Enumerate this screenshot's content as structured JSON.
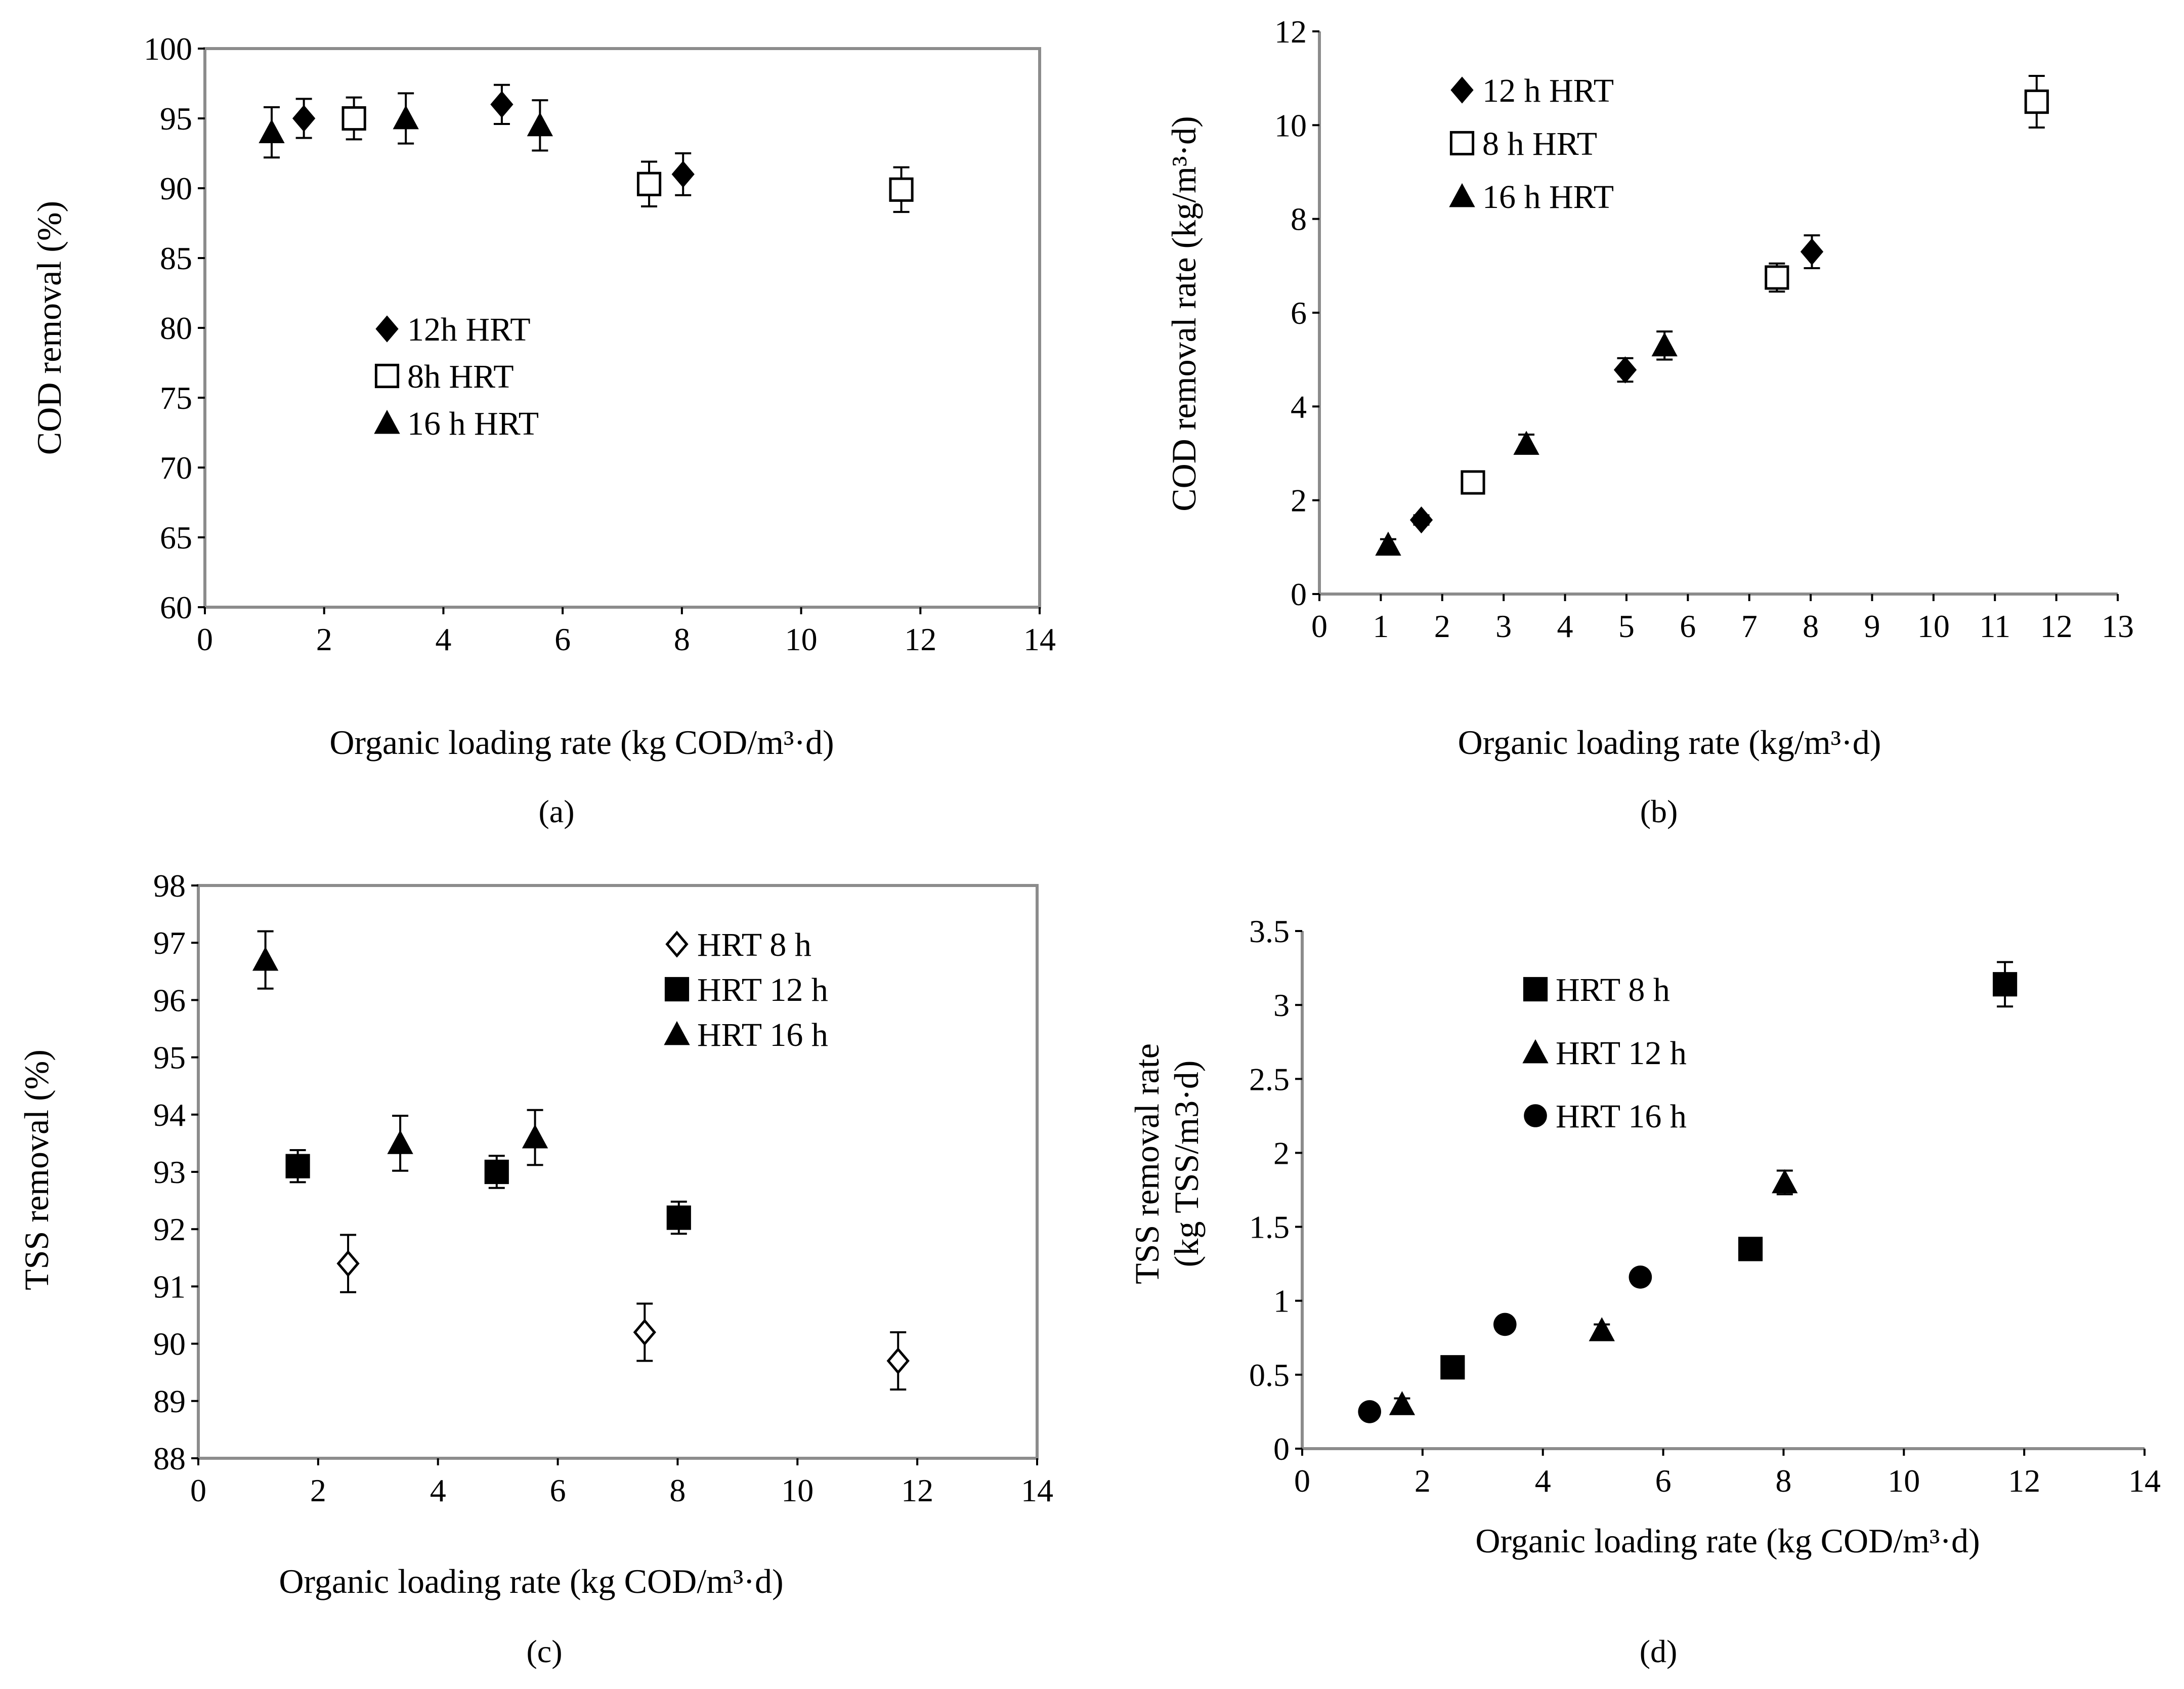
{
  "figure": {
    "panel_labels": [
      "(a)",
      "(b)",
      "(c)",
      "(d)"
    ]
  },
  "chart_data": [
    {
      "id": "a",
      "type": "scatter",
      "xlabel": "Organic loading rate (kg COD/m³·d)",
      "ylabel": "COD removal (%)",
      "xlim": [
        0,
        14
      ],
      "ylim": [
        60,
        100
      ],
      "xticks": [
        0,
        2,
        4,
        6,
        8,
        10,
        12,
        14
      ],
      "yticks": [
        60,
        65,
        70,
        75,
        80,
        85,
        90,
        95,
        100
      ],
      "legend_position": "middle-left",
      "series": [
        {
          "name": "12h HRT",
          "marker": "diamond-filled",
          "points": [
            {
              "x": 1.66,
              "y": 95,
              "err": 1.4
            },
            {
              "x": 4.98,
              "y": 96,
              "err": 1.4
            },
            {
              "x": 8.02,
              "y": 91,
              "err": 1.5
            }
          ]
        },
        {
          "name": "8h HRT",
          "marker": "square-open",
          "points": [
            {
              "x": 2.5,
              "y": 95,
              "err": 1.5
            },
            {
              "x": 7.45,
              "y": 90.3,
              "err": 1.6
            },
            {
              "x": 11.68,
              "y": 89.9,
              "err": 1.6
            }
          ]
        },
        {
          "name": "16 h HRT",
          "marker": "triangle-filled",
          "points": [
            {
              "x": 1.12,
              "y": 94,
              "err": 1.8
            },
            {
              "x": 3.37,
              "y": 95,
              "err": 1.8
            },
            {
              "x": 5.62,
              "y": 94.5,
              "err": 1.8
            }
          ]
        }
      ]
    },
    {
      "id": "b",
      "type": "scatter",
      "xlabel": "Organic loading rate (kg/m³·d)",
      "ylabel": "COD removal rate (kg/m³·d)",
      "xlim": [
        0,
        13
      ],
      "ylim": [
        0,
        12
      ],
      "xticks": [
        0,
        1,
        2,
        3,
        4,
        5,
        6,
        7,
        8,
        9,
        10,
        11,
        12,
        13
      ],
      "yticks": [
        0,
        2,
        4,
        6,
        8,
        10,
        12
      ],
      "legend_position": "top-left",
      "series": [
        {
          "name": "12 h HRT",
          "marker": "diamond-filled",
          "points": [
            {
              "x": 1.66,
              "y": 1.58,
              "err": 0.1
            },
            {
              "x": 4.98,
              "y": 4.78,
              "err": 0.25
            },
            {
              "x": 8.02,
              "y": 7.3,
              "err": 0.35
            }
          ]
        },
        {
          "name": "8 h HRT",
          "marker": "square-open",
          "points": [
            {
              "x": 2.5,
              "y": 2.38,
              "err": 0
            },
            {
              "x": 7.45,
              "y": 6.75,
              "err": 0.3
            },
            {
              "x": 11.68,
              "y": 10.5,
              "err": 0.55
            }
          ]
        },
        {
          "name": "16 h HRT",
          "marker": "triangle-filled",
          "points": [
            {
              "x": 1.12,
              "y": 1.05,
              "err": 0.12
            },
            {
              "x": 3.37,
              "y": 3.2,
              "err": 0.2
            },
            {
              "x": 5.62,
              "y": 5.3,
              "err": 0.3
            }
          ]
        }
      ]
    },
    {
      "id": "c",
      "type": "scatter",
      "xlabel": "Organic loading rate (kg COD/m³·d)",
      "ylabel": "TSS removal (%)",
      "xlim": [
        0,
        14
      ],
      "ylim": [
        88,
        98
      ],
      "xticks": [
        0,
        2,
        4,
        6,
        8,
        10,
        12,
        14
      ],
      "yticks": [
        88,
        89,
        90,
        91,
        92,
        93,
        94,
        95,
        96,
        97,
        98
      ],
      "legend_position": "top-right",
      "series": [
        {
          "name": "HRT 8 h",
          "marker": "diamond-open",
          "points": [
            {
              "x": 2.5,
              "y": 91.4,
              "err": 0.5
            },
            {
              "x": 7.45,
              "y": 90.2,
              "err": 0.5
            },
            {
              "x": 11.68,
              "y": 89.7,
              "err": 0.5
            }
          ]
        },
        {
          "name": "HRT 12 h",
          "marker": "square-filled",
          "points": [
            {
              "x": 1.66,
              "y": 93.1,
              "err": 0.28
            },
            {
              "x": 4.98,
              "y": 93.0,
              "err": 0.28
            },
            {
              "x": 8.02,
              "y": 92.2,
              "err": 0.28
            }
          ]
        },
        {
          "name": "HRT 16 h",
          "marker": "triangle-filled",
          "points": [
            {
              "x": 1.12,
              "y": 96.7,
              "err": 0.5
            },
            {
              "x": 3.37,
              "y": 93.5,
              "err": 0.48
            },
            {
              "x": 5.62,
              "y": 93.6,
              "err": 0.48
            }
          ]
        }
      ]
    },
    {
      "id": "d",
      "type": "scatter",
      "xlabel": "Organic loading rate (kg COD/m³·d)",
      "ylabel_line1": "TSS removal rate",
      "ylabel_line2": "(kg TSS/m3·d)",
      "xlim": [
        0,
        14
      ],
      "ylim": [
        0,
        3.5
      ],
      "xticks": [
        0,
        2,
        4,
        6,
        8,
        10,
        12,
        14
      ],
      "yticks": [
        0,
        0.5,
        1,
        1.5,
        2,
        2.5,
        3,
        3.5
      ],
      "legend_position": "top-left",
      "series": [
        {
          "name": "HRT 8 h",
          "marker": "square-filled",
          "points": [
            {
              "x": 2.5,
              "y": 0.55,
              "err": 0
            },
            {
              "x": 7.45,
              "y": 1.35,
              "err": 0
            },
            {
              "x": 11.68,
              "y": 3.14,
              "err": 0.15
            }
          ]
        },
        {
          "name": "HRT 12 h",
          "marker": "triangle-filled",
          "points": [
            {
              "x": 1.66,
              "y": 0.3,
              "err": 0.04
            },
            {
              "x": 4.98,
              "y": 0.8,
              "err": 0.04
            },
            {
              "x": 8.02,
              "y": 1.8,
              "err": 0.08
            }
          ]
        },
        {
          "name": "HRT 16 h",
          "marker": "circle-filled",
          "points": [
            {
              "x": 1.12,
              "y": 0.25,
              "err": 0
            },
            {
              "x": 3.37,
              "y": 0.84,
              "err": 0
            },
            {
              "x": 5.62,
              "y": 1.16,
              "err": 0
            }
          ]
        }
      ]
    }
  ]
}
